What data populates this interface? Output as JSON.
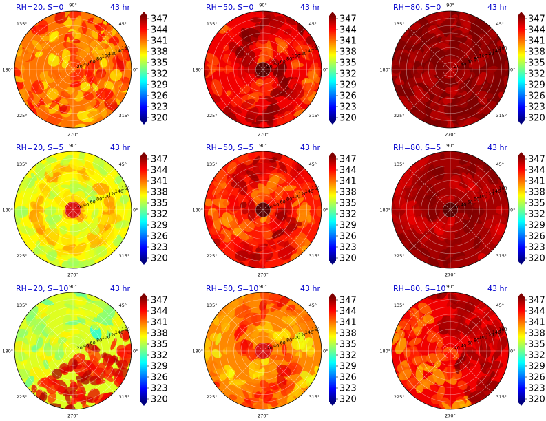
{
  "figure": {
    "colormap": [
      "#00007f",
      "#0000ff",
      "#007fff",
      "#00ffff",
      "#7fff7f",
      "#ffff00",
      "#ff7f00",
      "#ff0000",
      "#7f0000"
    ],
    "colorbar": {
      "ticks": [
        "347",
        "344",
        "341",
        "338",
        "335",
        "332",
        "329",
        "326",
        "323",
        "320"
      ],
      "vmin": 320,
      "vmax": 347
    },
    "angle_labels": [
      "90°",
      "45°",
      "0°",
      "315°",
      "270°",
      "225°",
      "180°",
      "135°"
    ],
    "radial_labels": [
      "20",
      "40",
      "60",
      "80",
      "100",
      "120",
      "140",
      "160"
    ]
  },
  "chart_data": [
    {
      "type": "heatmap",
      "projection": "polar",
      "title": "RH=20, S=0",
      "time": "43 hr",
      "mean": 340.5,
      "spread": 4,
      "pattern": "speckle",
      "eye": "none"
    },
    {
      "type": "heatmap",
      "projection": "polar",
      "title": "RH=50, S=0",
      "time": "43 hr",
      "mean": 344,
      "spread": 3,
      "pattern": "spiral",
      "eye": "dark"
    },
    {
      "type": "heatmap",
      "projection": "polar",
      "title": "RH=80, S=0",
      "time": "43 hr",
      "mean": 347,
      "spread": 1,
      "pattern": "flat",
      "eye": "none"
    },
    {
      "type": "heatmap",
      "projection": "polar",
      "title": "RH=20, S=5",
      "time": "43 hr",
      "mean": 337,
      "spread": 2.5,
      "pattern": "rings",
      "eye": "red"
    },
    {
      "type": "heatmap",
      "projection": "polar",
      "title": "RH=50, S=5",
      "time": "43 hr",
      "mean": 343,
      "spread": 3,
      "pattern": "spiral",
      "eye": "dark"
    },
    {
      "type": "heatmap",
      "projection": "polar",
      "title": "RH=80, S=5",
      "time": "43 hr",
      "mean": 346,
      "spread": 1.5,
      "pattern": "spiral",
      "eye": "dark"
    },
    {
      "type": "heatmap",
      "projection": "polar",
      "title": "RH=20, S=10",
      "time": "43 hr",
      "mean": 336,
      "spread": 3,
      "pattern": "split",
      "eye": "none"
    },
    {
      "type": "heatmap",
      "projection": "polar",
      "title": "RH=50, S=10",
      "time": "43 hr",
      "mean": 340,
      "spread": 3,
      "pattern": "spiral",
      "eye": "red"
    },
    {
      "type": "heatmap",
      "projection": "polar",
      "title": "RH=80, S=10",
      "time": "43 hr",
      "mean": 344,
      "spread": 2.5,
      "pattern": "split-warm",
      "eye": "none"
    }
  ]
}
